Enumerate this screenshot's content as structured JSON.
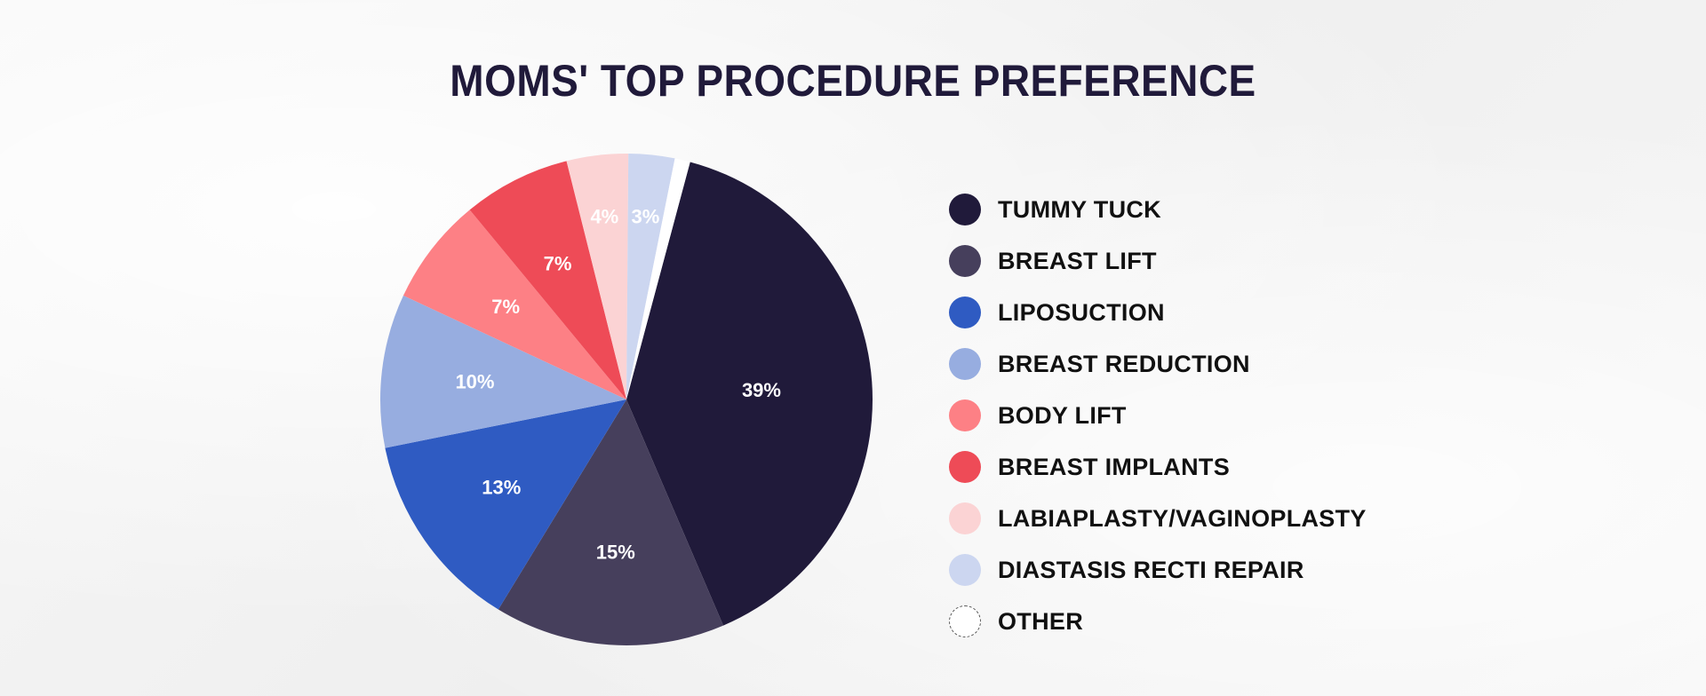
{
  "chart_data": {
    "type": "pie",
    "title": "MOMS' TOP PROCEDURE PREFERENCE",
    "slices": [
      {
        "name": "TUMMY TUCK",
        "value": 39,
        "label": "39%",
        "color": "#201a3a"
      },
      {
        "name": "BREAST LIFT",
        "value": 15,
        "label": "15%",
        "color": "#463f5c"
      },
      {
        "name": "LIPOSUCTION",
        "value": 13,
        "label": "13%",
        "color": "#2f5bc2"
      },
      {
        "name": "BREAST REDUCTION",
        "value": 10,
        "label": "10%",
        "color": "#97ade0"
      },
      {
        "name": "BODY LIFT",
        "value": 7,
        "label": "7%",
        "color": "#fd8085"
      },
      {
        "name": "BREAST IMPLANTS",
        "value": 7,
        "label": "7%",
        "color": "#ee4b57"
      },
      {
        "name": "LABIAPLASTY/VAGINOPLASTY",
        "value": 4,
        "label": "4%",
        "color": "#fbd3d4"
      },
      {
        "name": "DIASTASIS RECTI REPAIR",
        "value": 3,
        "label": "3%",
        "color": "#ccd6f0"
      },
      {
        "name": "OTHER",
        "value": 1,
        "label": "",
        "color": "#ffffff"
      }
    ],
    "legend_position": "right"
  }
}
